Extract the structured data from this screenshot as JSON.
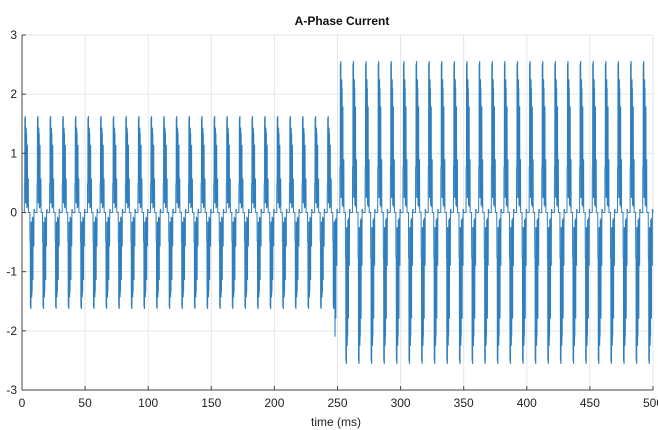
{
  "chart_data": {
    "type": "line",
    "title": "A-Phase Current",
    "xlabel": "time (ms)",
    "ylabel": "",
    "xlim": [
      0,
      500
    ],
    "ylim": [
      -3,
      3
    ],
    "x_ticks": [
      0,
      50,
      100,
      150,
      200,
      250,
      300,
      350,
      400,
      450,
      500
    ],
    "y_ticks": [
      -3,
      -2,
      -1,
      0,
      1,
      2,
      3
    ],
    "x_tick_labels": [
      "0",
      "50",
      "100",
      "150",
      "200",
      "250",
      "300",
      "350",
      "400",
      "450",
      "500"
    ],
    "y_tick_labels": [
      "-3",
      "-2",
      "-1",
      "0",
      "1",
      "2",
      "3"
    ],
    "grid": true,
    "series": [
      {
        "color": "#2f7fbf",
        "waveform": "pulse train",
        "period_ms": 10,
        "segments": [
          {
            "x_start": 0,
            "x_end": 248,
            "peak": 1.62,
            "min": -1.62
          },
          {
            "x_start": 248,
            "x_end": 500,
            "peak": 2.55,
            "min": -2.55
          }
        ]
      }
    ]
  }
}
